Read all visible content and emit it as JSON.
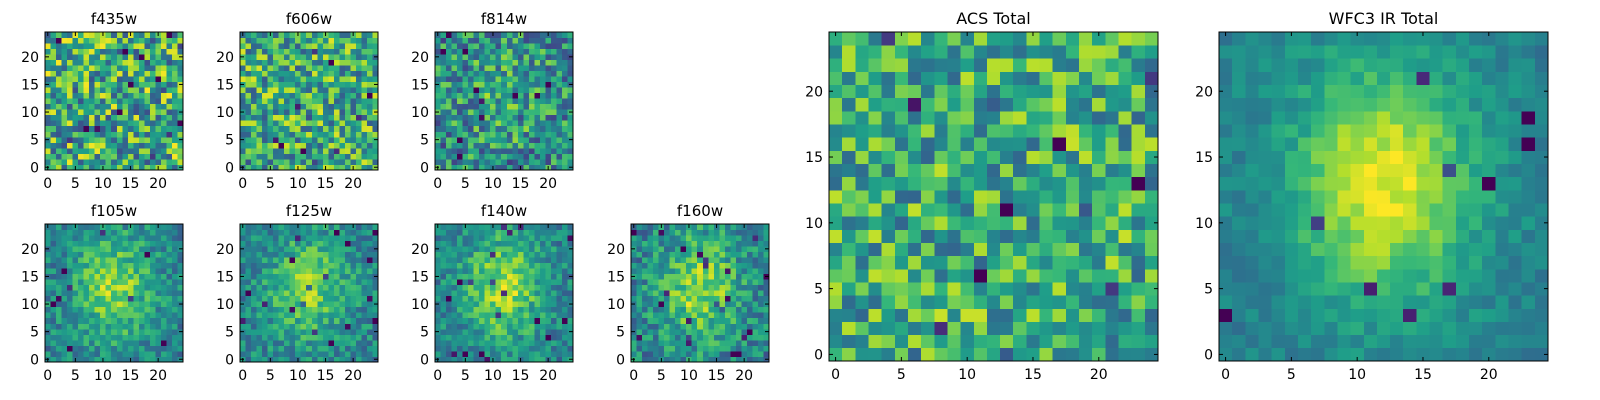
{
  "chart_data": [
    {
      "type": "heatmap",
      "title": "f435w",
      "colormap": "viridis",
      "grid_size": [
        25,
        25
      ],
      "pattern": "noise",
      "noise_level": 0.5,
      "seed": 11,
      "xlim": [
        0,
        24
      ],
      "ylim": [
        0,
        24
      ],
      "xticks": [
        0,
        5,
        10,
        15,
        20
      ],
      "yticks": [
        0,
        5,
        10,
        15,
        20
      ],
      "grid": false
    },
    {
      "type": "heatmap",
      "title": "f606w",
      "colormap": "viridis",
      "grid_size": [
        25,
        25
      ],
      "pattern": "noise",
      "noise_level": 0.45,
      "seed": 23,
      "xlim": [
        0,
        24
      ],
      "ylim": [
        0,
        24
      ],
      "xticks": [
        0,
        5,
        10,
        15,
        20
      ],
      "yticks": [
        0,
        5,
        10,
        15,
        20
      ],
      "grid": false
    },
    {
      "type": "heatmap",
      "title": "f814w",
      "colormap": "viridis",
      "grid_size": [
        25,
        25
      ],
      "pattern": "noise+faint-source",
      "noise_level": 0.5,
      "source_center": [
        12,
        13
      ],
      "source_strength": 0.25,
      "seed": 37,
      "xlim": [
        0,
        24
      ],
      "ylim": [
        0,
        24
      ],
      "xticks": [
        0,
        5,
        10,
        15,
        20
      ],
      "yticks": [
        0,
        5,
        10,
        15,
        20
      ],
      "grid": false
    },
    {
      "type": "heatmap",
      "title": "f105w",
      "colormap": "viridis",
      "grid_size": [
        25,
        25
      ],
      "pattern": "source",
      "noise_level": 0.3,
      "source_center": [
        12,
        13
      ],
      "source_strength": 0.6,
      "seed": 41,
      "xlim": [
        0,
        24
      ],
      "ylim": [
        0,
        24
      ],
      "xticks": [
        0,
        5,
        10,
        15,
        20
      ],
      "yticks": [
        0,
        5,
        10,
        15,
        20
      ],
      "grid": false
    },
    {
      "type": "heatmap",
      "title": "f125w",
      "colormap": "viridis",
      "grid_size": [
        25,
        25
      ],
      "pattern": "source",
      "noise_level": 0.3,
      "source_center": [
        12,
        13
      ],
      "source_strength": 0.55,
      "seed": 53,
      "xlim": [
        0,
        24
      ],
      "ylim": [
        0,
        24
      ],
      "xticks": [
        0,
        5,
        10,
        15,
        20
      ],
      "yticks": [
        0,
        5,
        10,
        15,
        20
      ],
      "grid": false
    },
    {
      "type": "heatmap",
      "title": "f140w",
      "colormap": "viridis",
      "grid_size": [
        25,
        25
      ],
      "pattern": "source",
      "noise_level": 0.3,
      "source_center": [
        12,
        13
      ],
      "source_strength": 0.65,
      "seed": 67,
      "xlim": [
        0,
        24
      ],
      "ylim": [
        0,
        24
      ],
      "xticks": [
        0,
        5,
        10,
        15,
        20
      ],
      "yticks": [
        0,
        5,
        10,
        15,
        20
      ],
      "grid": false
    },
    {
      "type": "heatmap",
      "title": "f160w",
      "colormap": "viridis",
      "grid_size": [
        25,
        25
      ],
      "pattern": "source",
      "noise_level": 0.35,
      "source_center": [
        12,
        13
      ],
      "source_strength": 0.65,
      "seed": 79,
      "xlim": [
        0,
        24
      ],
      "ylim": [
        0,
        24
      ],
      "xticks": [
        0,
        5,
        10,
        15,
        20
      ],
      "yticks": [
        0,
        5,
        10,
        15,
        20
      ],
      "grid": false
    },
    {
      "type": "heatmap",
      "title": "ACS Total",
      "colormap": "viridis",
      "grid_size": [
        25,
        25
      ],
      "pattern": "noise",
      "noise_level": 0.4,
      "seed": 97,
      "xlim": [
        0,
        24
      ],
      "ylim": [
        0,
        24
      ],
      "xticks": [
        0,
        5,
        10,
        15,
        20
      ],
      "yticks": [
        0,
        5,
        10,
        15,
        20
      ],
      "grid": false
    },
    {
      "type": "heatmap",
      "title": "WFC3 IR Total",
      "colormap": "viridis",
      "grid_size": [
        25,
        25
      ],
      "pattern": "source",
      "noise_level": 0.15,
      "source_center": [
        12,
        13
      ],
      "source_strength": 0.85,
      "seed": 101,
      "xlim": [
        0,
        24
      ],
      "ylim": [
        0,
        24
      ],
      "xticks": [
        0,
        5,
        10,
        15,
        20
      ],
      "yticks": [
        0,
        5,
        10,
        15,
        20
      ],
      "grid": false
    }
  ]
}
